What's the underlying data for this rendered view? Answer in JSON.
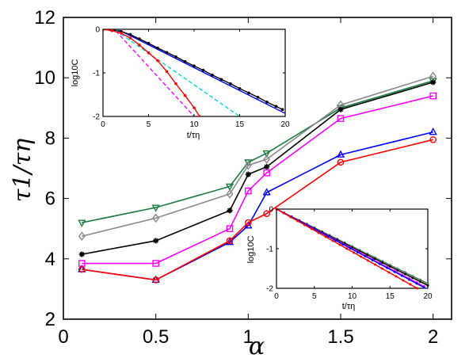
{
  "chart_data": [
    {
      "type": "line",
      "xlabel": "α",
      "ylabel": "τ1/τη",
      "xlim": [
        0,
        2.1
      ],
      "ylim": [
        2,
        12
      ],
      "x_ticks": [
        "0",
        "0.5",
        "1",
        "1.5",
        "2"
      ],
      "y_ticks": [
        "2",
        "4",
        "6",
        "8",
        "10",
        "12"
      ],
      "grid": false,
      "x": [
        0.1,
        0.5,
        0.9,
        1.0,
        1.1,
        1.5,
        2.0
      ],
      "series": [
        {
          "color": "#1a7a3c",
          "marker": "triangle-down",
          "values": [
            5.2,
            5.7,
            6.4,
            7.2,
            7.5,
            9.0,
            9.9
          ]
        },
        {
          "color": "#888888",
          "marker": "diamond",
          "values": [
            4.75,
            5.35,
            6.15,
            7.1,
            7.3,
            9.1,
            10.05
          ]
        },
        {
          "color": "#000000",
          "marker": "asterisk",
          "values": [
            4.15,
            4.6,
            5.6,
            6.8,
            7.05,
            8.95,
            9.85
          ]
        },
        {
          "color": "#ff00ff",
          "marker": "square",
          "values": [
            3.85,
            3.85,
            5.0,
            6.25,
            6.85,
            8.65,
            9.4
          ]
        },
        {
          "color": "#0000ff",
          "marker": "triangle-up",
          "values": [
            3.65,
            3.3,
            4.55,
            5.1,
            6.2,
            7.45,
            8.2
          ]
        },
        {
          "color": "#ff0000",
          "marker": "circle",
          "values": [
            3.65,
            3.3,
            4.6,
            5.2,
            5.5,
            7.2,
            7.95
          ]
        }
      ]
    },
    {
      "type": "line",
      "xlabel": "t/τη",
      "ylabel": "log10C",
      "xlim": [
        0,
        20
      ],
      "ylim": [
        -2,
        0
      ],
      "x_ticks": [
        "0",
        "5",
        "10",
        "15",
        "20"
      ],
      "y_ticks": [
        "-2",
        "-1",
        "0"
      ],
      "series": [
        {
          "color": "#0000ff",
          "style": "solid",
          "x": [
            0,
            2,
            20
          ],
          "values": [
            0,
            -0.04,
            -1.93
          ]
        },
        {
          "color": "#000000",
          "style": "solid-dots",
          "x": [
            0,
            1,
            2,
            3,
            4,
            5,
            6,
            7,
            8,
            9,
            10,
            11,
            12,
            13,
            14,
            15,
            16,
            17,
            18,
            19,
            19.7
          ],
          "values": [
            0,
            -0.01,
            -0.05,
            -0.12,
            -0.22,
            -0.32,
            -0.43,
            -0.53,
            -0.63,
            -0.74,
            -0.84,
            -0.94,
            -1.05,
            -1.15,
            -1.25,
            -1.36,
            -1.46,
            -1.56,
            -1.67,
            -1.77,
            -1.84
          ]
        },
        {
          "color": "#00d8d8",
          "style": "dashed",
          "x": [
            0,
            1.5,
            15
          ],
          "values": [
            0,
            -0.04,
            -2.0
          ]
        },
        {
          "color": "#ff00ff",
          "style": "dashed",
          "x": [
            0,
            1.5,
            10
          ],
          "values": [
            0,
            -0.06,
            -2.0
          ]
        },
        {
          "color": "#ff0000",
          "style": "solid-dots",
          "x": [
            0,
            1,
            2,
            3,
            4,
            5,
            6,
            7,
            8,
            9,
            10,
            10.6
          ],
          "values": [
            0,
            -0.03,
            -0.09,
            -0.2,
            -0.36,
            -0.54,
            -0.72,
            -0.97,
            -1.25,
            -1.52,
            -1.8,
            -2.0
          ]
        }
      ]
    },
    {
      "type": "line",
      "xlabel": "t/τη",
      "ylabel": "log10C",
      "xlim": [
        0,
        20
      ],
      "ylim": [
        -2,
        0
      ],
      "x_ticks": [
        "0",
        "5",
        "10",
        "15",
        "20"
      ],
      "y_ticks": [
        "-2",
        "-1",
        "0"
      ],
      "series": [
        {
          "color": "#1a7a3c",
          "x": [
            0,
            20
          ],
          "values": [
            0,
            -1.88
          ]
        },
        {
          "color": "#888888",
          "x": [
            0,
            20
          ],
          "values": [
            0,
            -1.9
          ]
        },
        {
          "color": "#000000",
          "x": [
            0,
            20
          ],
          "values": [
            0,
            -1.93
          ]
        },
        {
          "color": "#ff00ff",
          "x": [
            0,
            19.5
          ],
          "values": [
            0,
            -1.95
          ]
        },
        {
          "color": "#0000ff",
          "x": [
            0,
            19.5
          ],
          "values": [
            0,
            -1.98
          ]
        },
        {
          "color": "#ff0000",
          "x": [
            0,
            18.6
          ],
          "values": [
            0,
            -2.0
          ]
        }
      ]
    }
  ]
}
